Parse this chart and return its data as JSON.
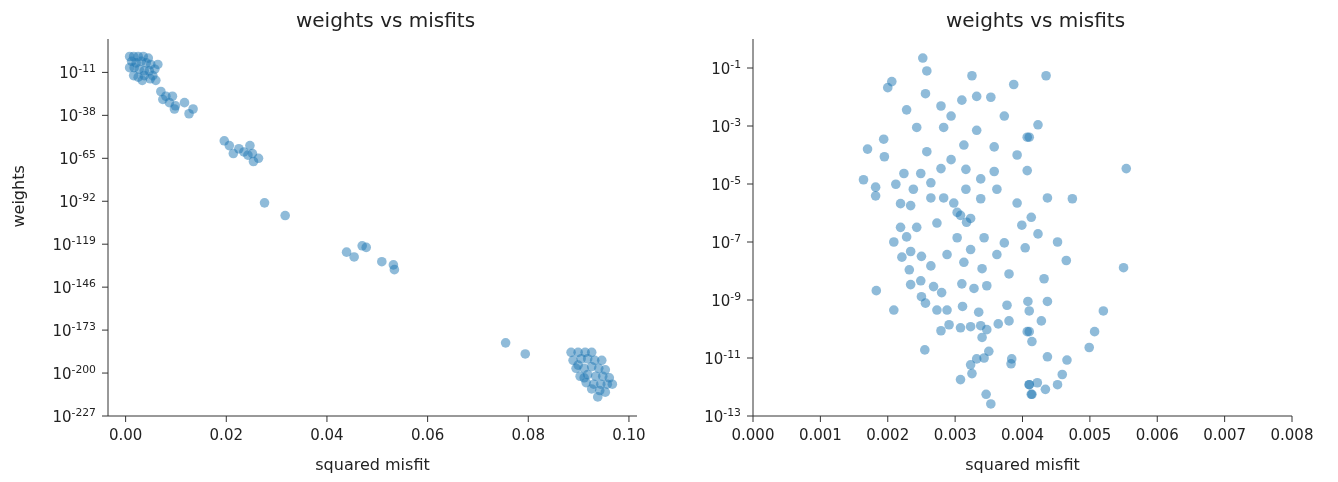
{
  "chart_data": [
    {
      "type": "scatter",
      "title": "weights vs misfits",
      "xlabel": "squared misfit",
      "ylabel": "weights",
      "log": "y",
      "marker": "circle",
      "color": "#1f77b4",
      "xlim": [
        -0.0035,
        0.1016
      ],
      "ylim": [
        1e-227,
        10000000000.0
      ],
      "xticks": [
        {
          "value": 0,
          "label": "0.00"
        },
        {
          "value": 0.02,
          "label": "0.02"
        },
        {
          "value": 0.04,
          "label": "0.04"
        },
        {
          "value": 0.06,
          "label": "0.06"
        },
        {
          "value": 0.08,
          "label": "0.08"
        },
        {
          "value": 0.1,
          "label": "0.10"
        }
      ],
      "yticks": [
        {
          "value": 1e-11,
          "label": "10$^{-11}$"
        },
        {
          "value": 1e-38,
          "label": "10$^{-38}$"
        },
        {
          "value": 1e-65,
          "label": "10$^{-65}$"
        },
        {
          "value": 1e-92,
          "label": "10$^{-92}$"
        },
        {
          "value": 1e-119,
          "label": "10$^{-119}$"
        },
        {
          "value": 1e-146,
          "label": "10$^{-146}$"
        },
        {
          "value": 1e-173,
          "label": "10$^{-173}$"
        },
        {
          "value": 1e-200,
          "label": "10$^{-200}$"
        },
        {
          "value": 1e-227,
          "label": "10$^{-227}$"
        }
      ],
      "x": [
        0.0008,
        0.0016,
        0.0025,
        0.0035,
        0.0045,
        0.0012,
        0.0021,
        0.0031,
        0.0041,
        0.005,
        0.0008,
        0.0017,
        0.0027,
        0.0037,
        0.0047,
        0.0058,
        0.0016,
        0.0025,
        0.0037,
        0.0049,
        0.0033,
        0.0064,
        0.0054,
        0.006,
        0.007,
        0.0074,
        0.008,
        0.0093,
        0.0087,
        0.0099,
        0.0097,
        0.0117,
        0.0134,
        0.0126,
        0.0196,
        0.0206,
        0.0214,
        0.0225,
        0.0247,
        0.0235,
        0.0252,
        0.0264,
        0.0254,
        0.0243,
        0.0276,
        0.0317,
        0.0439,
        0.0454,
        0.047,
        0.0478,
        0.0509,
        0.0532,
        0.0534,
        0.0755,
        0.0794,
        0.0885,
        0.0899,
        0.0913,
        0.0926,
        0.0889,
        0.0905,
        0.0918,
        0.0932,
        0.0946,
        0.0895,
        0.0911,
        0.0926,
        0.094,
        0.0953,
        0.0903,
        0.0918,
        0.0934,
        0.0948,
        0.0961,
        0.0915,
        0.093,
        0.0944,
        0.0957,
        0.0926,
        0.0942,
        0.0953,
        0.0967,
        0.0938,
        0.0911,
        0.0899
      ],
      "values": [
        0.1,
        0.1,
        0.1,
        0.1,
        0.01,
        0.0001,
        1e-05,
        0.0001,
        1e-05,
        1e-06,
        1e-08,
        1e-08,
        1e-09,
        1e-10,
        1e-10,
        1e-09,
        1e-13,
        1e-14,
        1e-13,
        1e-15,
        1e-16,
        1e-06,
        1e-13,
        1e-16,
        1e-23,
        1e-28,
        1e-26,
        1e-26,
        1e-30,
        1e-32,
        1e-34,
        1e-30,
        1e-34,
        1e-37,
        1e-54,
        1e-57,
        1e-62,
        1e-59,
        1e-57,
        1e-61,
        1e-62,
        1e-65,
        1e-67,
        1e-63,
        1e-93,
        1e-101,
        1e-124,
        1e-127,
        1e-120,
        1e-121,
        1e-130,
        1e-132,
        1e-135,
        1e-181,
        1e-188,
        1e-187,
        1e-187,
        1e-187,
        1e-187,
        1e-192,
        1e-191,
        1e-191,
        1e-192,
        1e-192,
        1e-197,
        1e-197,
        1e-196,
        1e-197,
        1e-198,
        1e-202,
        1e-201,
        1e-202,
        1e-202,
        1e-203,
        1e-206,
        1e-207,
        1e-207,
        1e-207,
        1e-210,
        1e-211,
        1e-212,
        1e-207,
        1e-215,
        1e-203,
        1e-195
      ]
    },
    {
      "type": "scatter",
      "title": "weights vs misfits",
      "xlabel": "squared misfit",
      "log": "y",
      "marker": "circle",
      "color": "#1f77b4",
      "xlim": [
        0,
        0.008
      ],
      "ylim": [
        1e-13,
        1
      ],
      "xticks": [
        {
          "value": 0,
          "label": "0.000"
        },
        0.001,
        0.002,
        0.003,
        0.004,
        0.005,
        0.006,
        0.007,
        0.008
      ],
      "yticks": [
        {
          "value": 1e-13,
          "label": "10$^{-13}$"
        },
        {
          "value": 1e-11,
          "label": "10$^{-11}$"
        },
        {
          "value": 1e-09,
          "label": "10$^{-9}$"
        },
        {
          "value": 1e-07,
          "label": "10$^{-7}$"
        },
        {
          "value": 1e-05,
          "label": "10$^{-5}$"
        },
        {
          "value": 0.001,
          "label": "10$^{-3}$"
        },
        {
          "value": 0.1,
          "label": "10$^{-1}$"
        }
      ],
      "x": [
        0.00435,
        0.00554,
        0.00474,
        0.0055,
        0.0052,
        0.00507,
        0.00499,
        0.00466,
        0.00459,
        0.00452,
        0.00423,
        0.0041,
        0.00407,
        0.00437,
        0.00413,
        0.00423,
        0.00452,
        0.00465,
        0.00432,
        0.00437,
        0.0041,
        0.00428,
        0.00407,
        0.00414,
        0.00437,
        0.0041,
        0.00414,
        0.00434,
        0.00422,
        0.00252,
        0.00258,
        0.00206,
        0.002,
        0.00325,
        0.00387,
        0.00228,
        0.00194,
        0.0017,
        0.00195,
        0.00164,
        0.00182,
        0.00182,
        0.00212,
        0.00256,
        0.00332,
        0.00353,
        0.00279,
        0.00294,
        0.0031,
        0.00243,
        0.00283,
        0.00373,
        0.00332,
        0.00358,
        0.00313,
        0.00258,
        0.00294,
        0.00392,
        0.00249,
        0.00279,
        0.00316,
        0.00338,
        0.00358,
        0.00407,
        0.00224,
        0.00238,
        0.00264,
        0.00298,
        0.00316,
        0.00338,
        0.00362,
        0.00392,
        0.00219,
        0.00234,
        0.00264,
        0.00283,
        0.00308,
        0.00323,
        0.00219,
        0.00228,
        0.00209,
        0.00243,
        0.00273,
        0.00303,
        0.00317,
        0.00343,
        0.00303,
        0.00373,
        0.00399,
        0.00221,
        0.00234,
        0.0025,
        0.00264,
        0.00288,
        0.00313,
        0.00323,
        0.0034,
        0.00362,
        0.0038,
        0.00404,
        0.00232,
        0.00234,
        0.00249,
        0.00268,
        0.0028,
        0.0031,
        0.00328,
        0.00347,
        0.00183,
        0.0025,
        0.00256,
        0.00209,
        0.00273,
        0.00288,
        0.00311,
        0.00335,
        0.00377,
        0.00279,
        0.00291,
        0.00308,
        0.00323,
        0.00338,
        0.00347,
        0.00364,
        0.0038,
        0.0034,
        0.00255,
        0.0035,
        0.00332,
        0.00343,
        0.00323,
        0.00325,
        0.00308,
        0.00384,
        0.00383,
        0.00346,
        0.00353,
        0.0041,
        0.00413,
        0.00408,
        0.0041
      ],
      "values": [
        0.054,
        3.4e-05,
        3.1e-06,
        1.3e-08,
        4.2e-10,
        8.1e-11,
        2.3e-11,
        8.5e-12,
        2.7e-12,
        1.2e-12,
        0.0011,
        0.00041,
        2.9e-05,
        3.3e-06,
        7.1e-07,
        1.9e-07,
        1e-07,
        2.3e-08,
        5.4e-09,
        8.9e-10,
        4.2e-10,
        1.9e-10,
        8.1e-11,
        3.7e-11,
        1.1e-11,
        1.2e-12,
        5.6e-13,
        8.3e-13,
        1.4e-12,
        0.22,
        0.079,
        0.034,
        0.021,
        0.054,
        0.027,
        0.0036,
        0.00035,
        0.00016,
        8.7e-05,
        1.4e-05,
        7.8e-06,
        3.9e-06,
        9.8e-06,
        0.013,
        0.0105,
        0.0098,
        0.0049,
        0.0022,
        0.0078,
        0.00089,
        0.00089,
        0.0022,
        0.00071,
        0.00019,
        0.00022,
        0.00013,
        6.9e-05,
        0.0001,
        2.3e-05,
        3.4e-05,
        3.2e-05,
        1.5e-05,
        2.7e-05,
        0.00041,
        2.3e-05,
        6.6e-06,
        1.1e-05,
        2.2e-06,
        6.6e-06,
        3.1e-06,
        6.6e-06,
        2.2e-06,
        2.1e-06,
        1.8e-06,
        3.3e-06,
        3.3e-06,
        8.3e-07,
        6.5e-07,
        3.2e-07,
        1.5e-07,
        1e-07,
        3.2e-07,
        4.5e-07,
        1.05e-06,
        4.8e-07,
        1.4e-07,
        1.4e-07,
        9.3e-08,
        3.8e-07,
        3e-08,
        4.7e-08,
        3.2e-08,
        1.5e-08,
        3.7e-08,
        2e-08,
        5.5e-08,
        1.2e-08,
        3.7e-08,
        7.9e-09,
        6.3e-08,
        1.1e-08,
        3.4e-09,
        4.6e-09,
        2.9e-09,
        1.8e-09,
        3.6e-09,
        2.5e-09,
        3.1e-09,
        2.1e-09,
        1.3e-09,
        7.8e-10,
        4.5e-10,
        4.5e-10,
        4.5e-10,
        6e-10,
        3.8e-10,
        6.6e-10,
        8.7e-11,
        1.4e-10,
        1.1e-10,
        1.2e-10,
        1.3e-10,
        9.5e-11,
        1.5e-10,
        1.9e-10,
        5.1e-11,
        1.9e-11,
        1.7e-11,
        9.3e-12,
        1e-11,
        5.8e-12,
        2.9e-12,
        1.8e-12,
        9.3e-12,
        6.3e-12,
        5.6e-13,
        2.6e-13,
        1.2e-12,
        5.6e-13,
        8.9e-10,
        8.1e-11
      ]
    }
  ]
}
